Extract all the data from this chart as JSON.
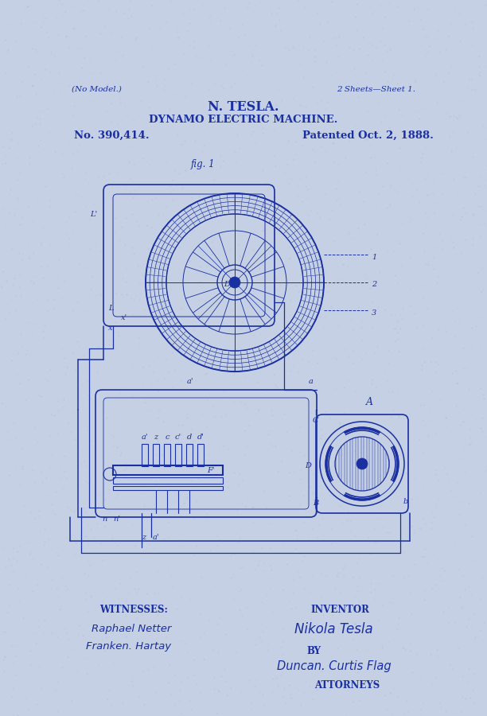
{
  "bg_color": "#c5d0e4",
  "line_color": "#1a2fa0",
  "title_line1": "N. TESLA.",
  "title_line2": "DYNAMO ELECTRIC MACHINE.",
  "patent_no": "No. 390,414.",
  "patent_date": "Patented Oct. 2, 1888.",
  "no_model": "(No Model.)",
  "sheets": "2 Sheets—Sheet 1.",
  "fig_label": "fig. 1",
  "witnesses_label": "WITNESSES:",
  "witness1": "Raphael Netter",
  "witness2": "Franken. Hartay",
  "inventor_label": "INVENTOR",
  "inventor_name": "Nikola Tesla",
  "by_label": "BY",
  "attorney_name": "Duncan. Curtis Flag",
  "attorneys_label": "ATTORNEYS"
}
